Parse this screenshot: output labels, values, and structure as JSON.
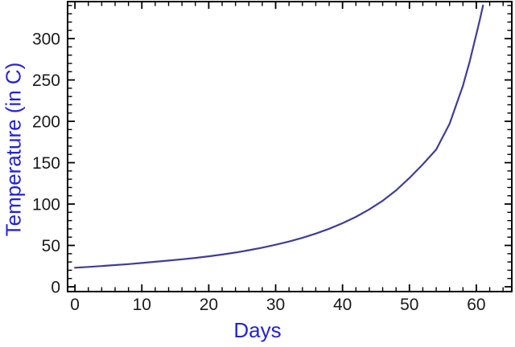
{
  "figure": {
    "background": "#ffffff",
    "frame_color": "#000000",
    "curve_color": "#3F3D99",
    "axis_title_color": "#2222DD",
    "tick_label_color": "#1a1a1a",
    "tick_label_font_px": 21
  },
  "chart_data": {
    "type": "line",
    "title": "",
    "xlabel": "Days",
    "ylabel": "Temperature (in C)",
    "grid": false,
    "legend": false,
    "x_axis": {
      "range": [
        -1.1,
        65.3
      ],
      "major_ticks": [
        0,
        10,
        20,
        30,
        40,
        50,
        60
      ],
      "minor_tick_step": 2
    },
    "y_axis": {
      "range": [
        -5.8,
        344.7
      ],
      "major_ticks": [
        0,
        50,
        100,
        150,
        200,
        250,
        300
      ],
      "minor_tick_step": 10
    },
    "series": [
      {
        "name": "temperature-curve",
        "color": "#3F3D99",
        "points": [
          [
            0,
            23.0
          ],
          [
            2,
            24.0
          ],
          [
            4,
            25.1
          ],
          [
            6,
            26.2
          ],
          [
            8,
            27.4
          ],
          [
            10,
            28.8
          ],
          [
            12,
            30.2
          ],
          [
            14,
            31.7
          ],
          [
            16,
            33.2
          ],
          [
            18,
            34.9
          ],
          [
            20,
            36.8
          ],
          [
            22,
            39.0
          ],
          [
            24,
            41.4
          ],
          [
            26,
            44.2
          ],
          [
            28,
            47.3
          ],
          [
            30,
            50.8
          ],
          [
            32,
            54.7
          ],
          [
            34,
            59.2
          ],
          [
            36,
            64.3
          ],
          [
            38,
            70.1
          ],
          [
            40,
            76.8
          ],
          [
            42,
            84.5
          ],
          [
            44,
            93.5
          ],
          [
            46,
            104.0
          ],
          [
            48,
            116.5
          ],
          [
            50,
            131.5
          ],
          [
            52,
            148.0
          ],
          [
            54,
            166.0
          ],
          [
            56,
            197.0
          ],
          [
            57,
            220.0
          ],
          [
            58,
            243.0
          ],
          [
            59,
            272.0
          ],
          [
            60,
            305.0
          ],
          [
            60.5,
            322.0
          ],
          [
            61,
            340.0
          ]
        ]
      }
    ]
  }
}
